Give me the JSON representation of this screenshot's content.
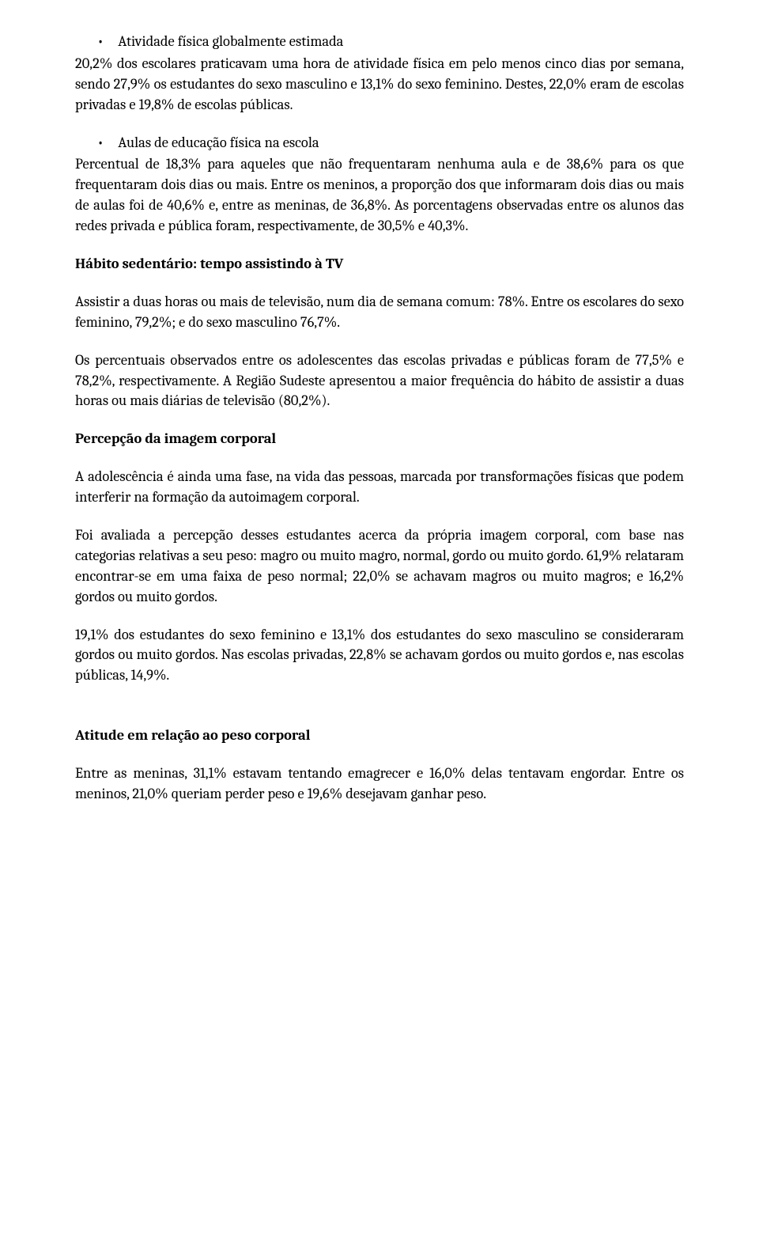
{
  "section1": {
    "bullet_title": "Atividade física globalmente estimada",
    "para1": "20,2% dos escolares praticavam uma hora de atividade física em pelo menos cinco dias por semana, sendo 27,9% os estudantes do sexo masculino e 13,1% do sexo feminino. Destes, 22,0% eram de escolas privadas e 19,8% de escolas públicas."
  },
  "section2": {
    "bullet_title": "Aulas de educação física na escola",
    "para1": "Percentual de 18,3% para aqueles que não frequentaram nenhuma aula e de 38,6% para os que frequentaram dois dias ou mais. Entre os meninos, a proporção dos que informaram dois dias ou mais de aulas foi de 40,6% e, entre as meninas, de 36,8%. As porcentagens observadas entre os alunos das redes privada e pública foram, respectivamente, de 30,5% e 40,3%."
  },
  "section3": {
    "heading": "Hábito sedentário: tempo assistindo à TV",
    "para1": "Assistir a duas horas ou mais de televisão, num dia de semana comum: 78%. Entre os escolares do sexo feminino, 79,2%; e do sexo masculino 76,7%.",
    "para2": "Os percentuais observados entre os adolescentes das escolas privadas e públicas foram de 77,5% e 78,2%, respectivamente. A Região Sudeste apresentou a maior frequência do hábito de assistir a duas horas ou mais diárias de televisão (80,2%)."
  },
  "section4": {
    "heading": "Percepção da imagem corporal",
    "para1": "A adolescência é ainda uma fase, na vida das pessoas, marcada por transformações físicas que podem interferir na formação da autoimagem corporal.",
    "para2": "Foi avaliada a percepção desses estudantes acerca da própria imagem corporal, com base nas categorias relativas a seu peso: magro ou muito magro, normal, gordo ou muito gordo. 61,9% relataram encontrar-se em uma faixa de peso normal; 22,0% se achavam magros ou muito magros; e 16,2% gordos ou muito gordos.",
    "para3": "19,1% dos estudantes do sexo feminino e 13,1% dos estudantes do sexo masculino se consideraram gordos ou muito gordos. Nas escolas privadas, 22,8% se achavam gordos ou muito gordos e, nas escolas públicas, 14,9%."
  },
  "section5": {
    "heading": "Atitude em relação ao peso corporal",
    "para1": "Entre as meninas, 31,1% estavam tentando emagrecer e 16,0% delas tentavam engordar. Entre os meninos, 21,0% queriam perder peso e 19,6% desejavam ganhar peso."
  }
}
